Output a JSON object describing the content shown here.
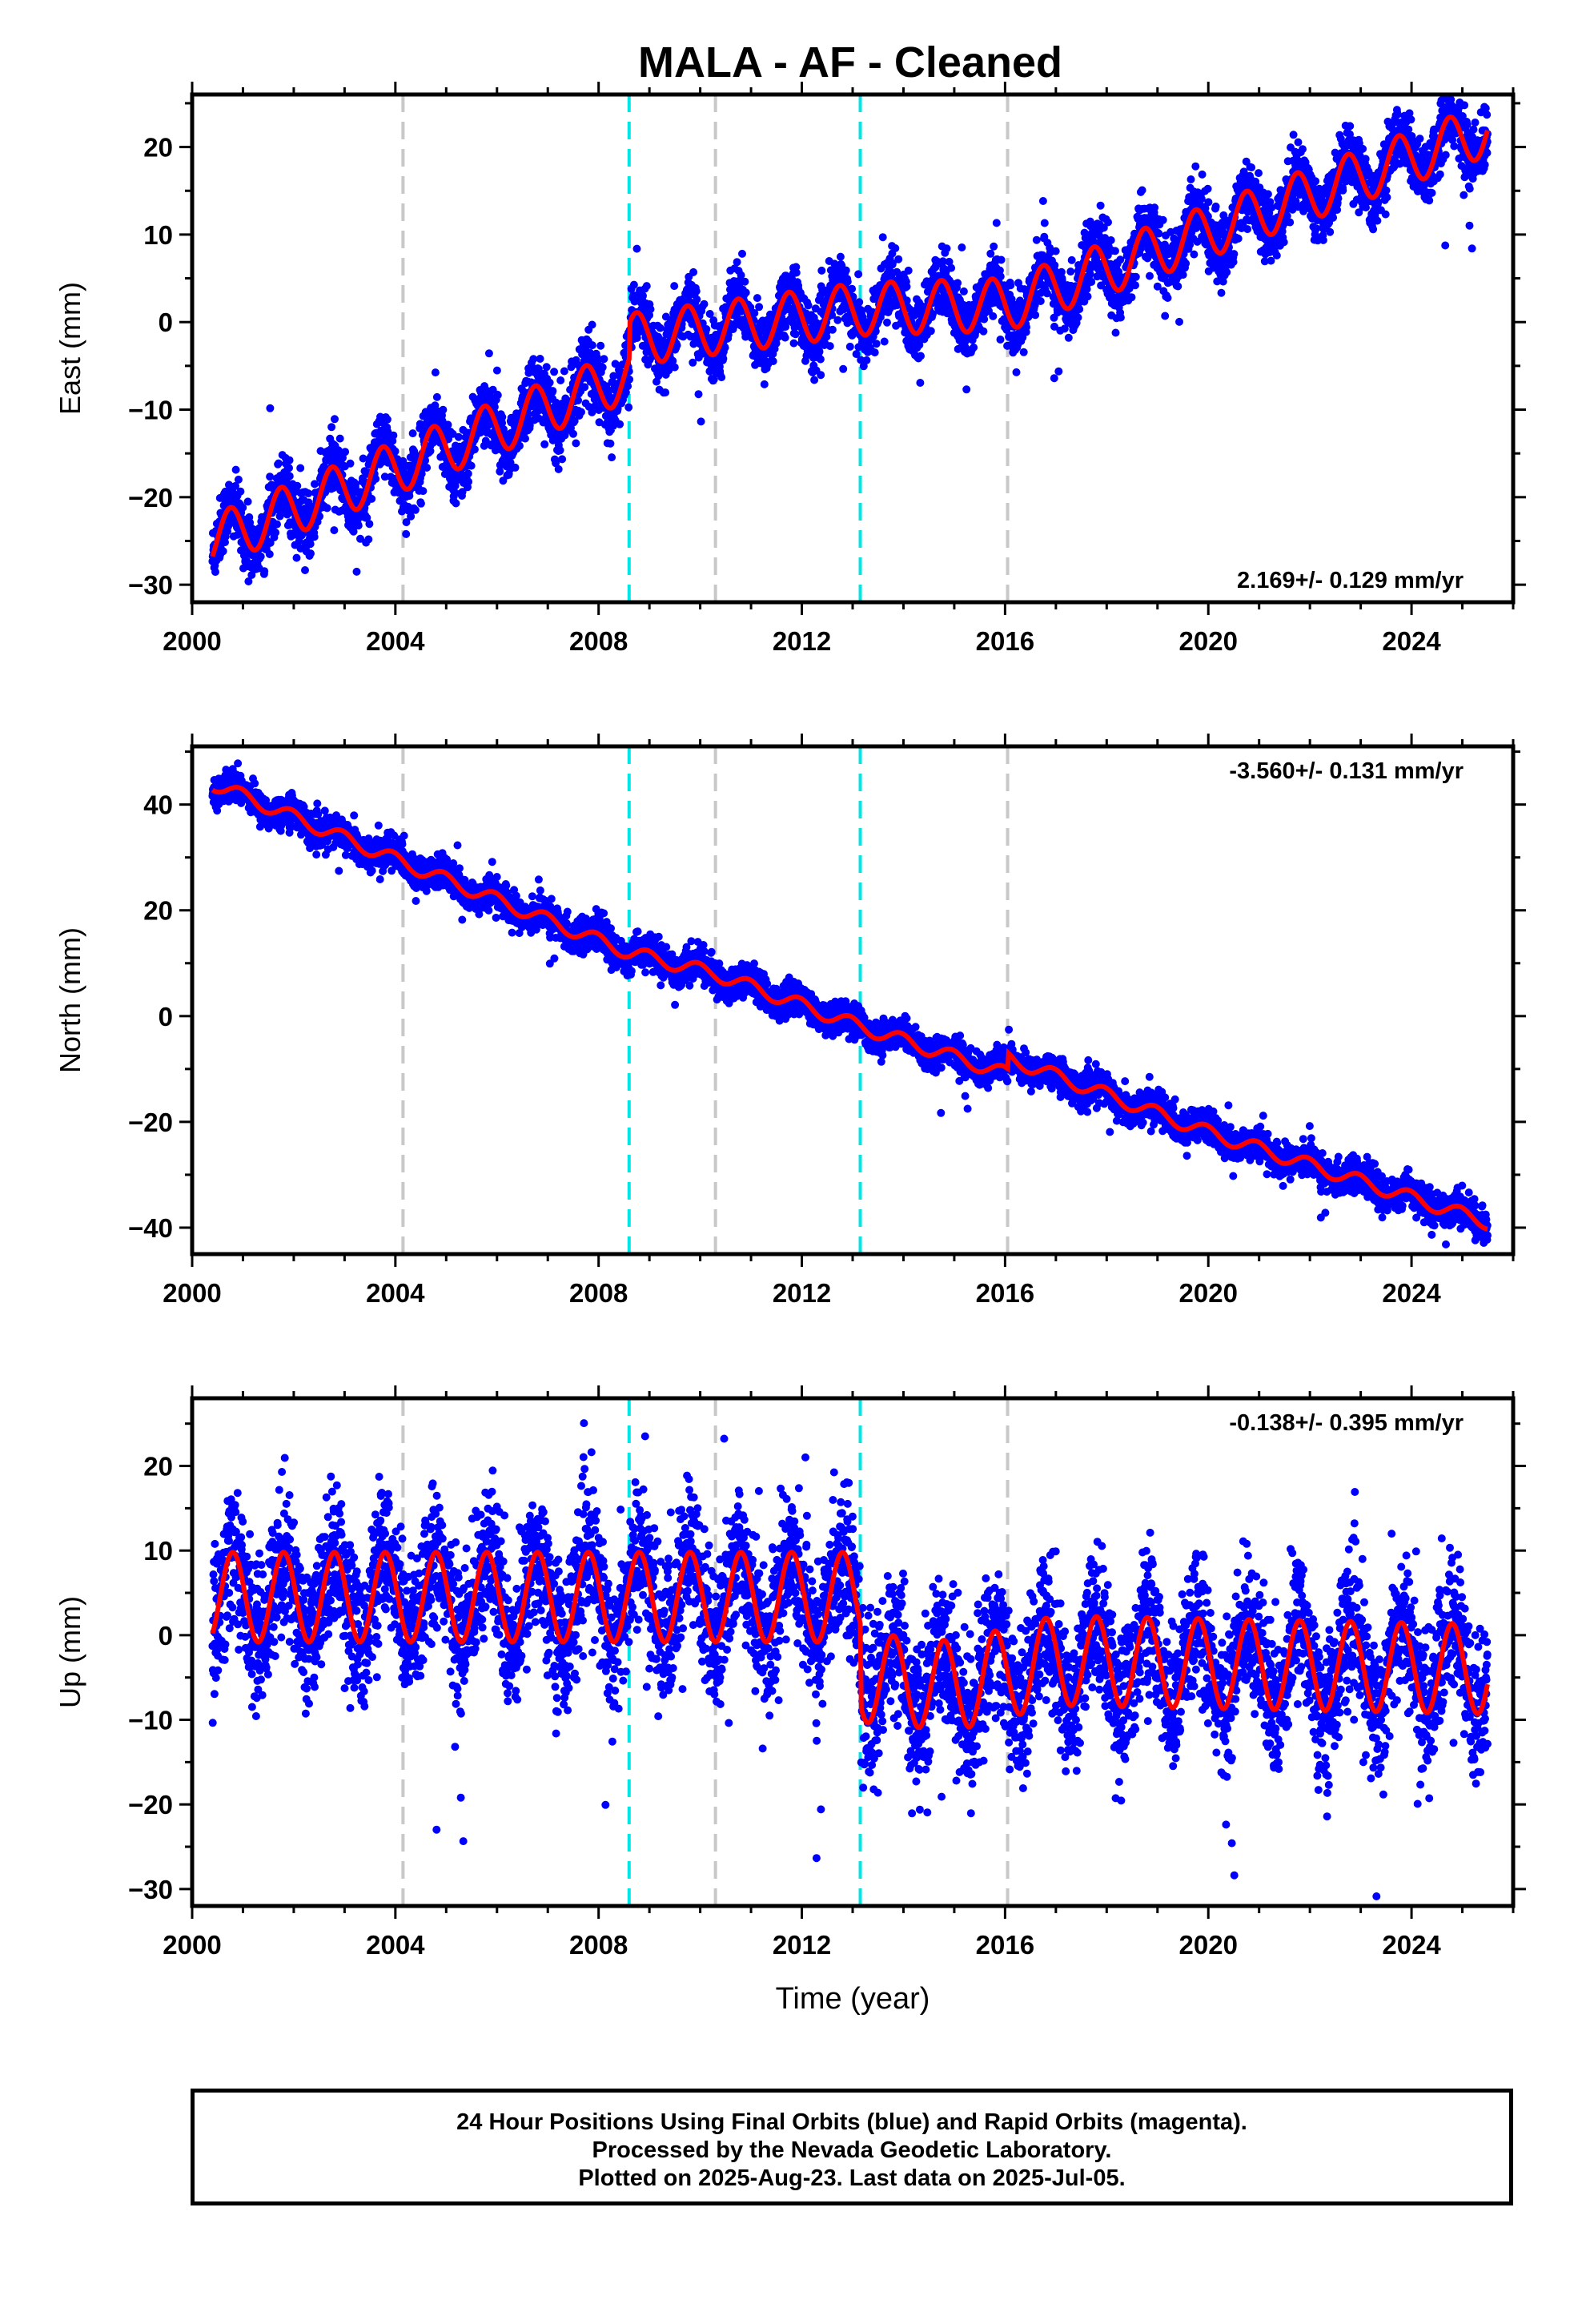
{
  "title": "MALA  - AF - Cleaned",
  "caption": {
    "lines": [
      "24 Hour Positions Using Final Orbits (blue) and Rapid Orbits (magenta).",
      "Processed by the Nevada Geodetic Laboratory.",
      "Plotted on 2025-Aug-23. Last data on 2025-Jul-05."
    ]
  },
  "colors": {
    "data": "#0000ff",
    "model": "#ff0000",
    "antenna_change": "#00e5e5",
    "other_event": "#c8c8c8"
  },
  "chart_data": [
    {
      "type": "scatter",
      "name": "east",
      "ylabel": "East (mm)",
      "xlabel": "",
      "xlim": [
        2000,
        2026
      ],
      "ylim": [
        -32,
        26
      ],
      "x_ticks": [
        2000,
        2004,
        2008,
        2012,
        2016,
        2020,
        2024
      ],
      "y_ticks": [
        -30,
        -20,
        -10,
        0,
        10,
        20
      ],
      "rate_label": "2.169+/- 0.129 mm/yr",
      "rate_position": "bottom-right",
      "start_year": 2000.4,
      "end_year": 2025.5,
      "cyan_lines": [
        2008.6,
        2013.15
      ],
      "gray_lines": [
        2004.15,
        2010.3,
        2016.05
      ],
      "model_knots": [
        [
          2000.4,
          -25
        ],
        [
          2008.6,
          -6
        ],
        [
          2008.62,
          -2
        ],
        [
          2013.15,
          1.5
        ],
        [
          2016.05,
          2
        ],
        [
          2025.5,
          22
        ]
      ],
      "model_amplitude": 3.0,
      "model_phase": 0.5,
      "scatter_sd": 1.8
    },
    {
      "type": "scatter",
      "name": "north",
      "ylabel": "North (mm)",
      "xlabel": "",
      "xlim": [
        2000,
        2026
      ],
      "ylim": [
        -45,
        51
      ],
      "x_ticks": [
        2000,
        2004,
        2008,
        2012,
        2016,
        2020,
        2024
      ],
      "y_ticks": [
        -40,
        -20,
        0,
        20,
        40
      ],
      "rate_label": "-3.560+/- 0.131 mm/yr",
      "rate_position": "top-right",
      "start_year": 2000.4,
      "end_year": 2025.5,
      "cyan_lines": [
        2008.6,
        2013.15
      ],
      "gray_lines": [
        2004.15,
        2010.3,
        2016.05
      ],
      "model_knots": [
        [
          2000.4,
          44
        ],
        [
          2004.15,
          29
        ],
        [
          2008.6,
          12
        ],
        [
          2010.3,
          8
        ],
        [
          2013.15,
          -2
        ],
        [
          2016.05,
          -11
        ],
        [
          2016.07,
          -8
        ],
        [
          2020,
          -22
        ],
        [
          2025.5,
          -39
        ]
      ],
      "model_amplitude": 1.3,
      "model_phase": 0.3,
      "scatter_sd": 1.5
    },
    {
      "type": "scatter",
      "name": "up",
      "ylabel": "Up (mm)",
      "xlabel": "Time (year)",
      "xlim": [
        2000,
        2026
      ],
      "ylim": [
        -32,
        28
      ],
      "x_ticks": [
        2000,
        2004,
        2008,
        2012,
        2016,
        2020,
        2024
      ],
      "y_ticks": [
        -30,
        -20,
        -10,
        0,
        10,
        20
      ],
      "rate_label": "-0.138+/- 0.395 mm/yr",
      "rate_position": "top-right",
      "start_year": 2000.4,
      "end_year": 2025.5,
      "cyan_lines": [
        2008.6,
        2013.15
      ],
      "gray_lines": [
        2004.15,
        2010.3,
        2016.05
      ],
      "model_knots": [
        [
          2000.4,
          4.5
        ],
        [
          2013.15,
          4.5
        ],
        [
          2013.17,
          -5
        ],
        [
          2015,
          -6
        ],
        [
          2017,
          -3
        ],
        [
          2025.5,
          -4
        ]
      ],
      "model_amplitude": 5.3,
      "model_phase": 0.45,
      "scatter_sd": 4.2
    }
  ]
}
